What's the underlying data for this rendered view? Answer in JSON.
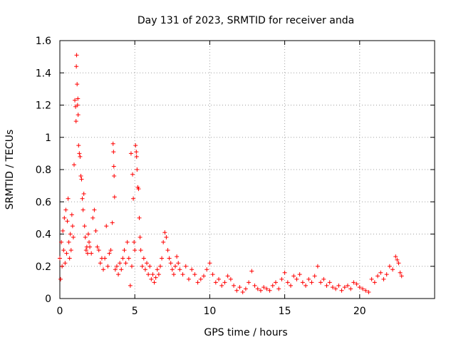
{
  "chart_data": {
    "type": "scatter",
    "title": "Day 131 of 2023, SRMTID for receiver anda",
    "xlabel": "GPS time / hours",
    "ylabel": "SRMTID / TECUs",
    "xlim": [
      0,
      25
    ],
    "ylim": [
      0,
      1.6
    ],
    "xticks": [
      0,
      5,
      10,
      15,
      20
    ],
    "xtick_labels": [
      "0",
      "5",
      "10",
      "15",
      "20"
    ],
    "yticks": [
      0,
      0.2,
      0.4,
      0.6,
      0.8,
      1.0,
      1.2,
      1.4,
      1.6
    ],
    "ytick_labels": [
      "0",
      "0.2",
      "0.4",
      "0.6",
      "0.8",
      "1",
      "1.2",
      "1.4",
      "1.6"
    ],
    "grid": true,
    "marker": "+",
    "series": [
      {
        "name": "SRMTID",
        "color": "#ff0000",
        "points": [
          [
            0.0,
            0.25
          ],
          [
            0.05,
            0.12
          ],
          [
            0.1,
            0.35
          ],
          [
            0.15,
            0.2
          ],
          [
            0.2,
            0.42
          ],
          [
            0.25,
            0.3
          ],
          [
            0.3,
            0.5
          ],
          [
            0.35,
            0.22
          ],
          [
            0.4,
            0.55
          ],
          [
            0.45,
            0.28
          ],
          [
            0.5,
            0.48
          ],
          [
            0.55,
            0.62
          ],
          [
            0.6,
            0.35
          ],
          [
            0.65,
            0.25
          ],
          [
            0.7,
            0.4
          ],
          [
            0.75,
            0.3
          ],
          [
            0.8,
            0.52
          ],
          [
            0.85,
            0.45
          ],
          [
            0.9,
            0.38
          ],
          [
            0.95,
            0.83
          ],
          [
            1.0,
            1.23
          ],
          [
            1.05,
            1.19
          ],
          [
            1.08,
            1.1
          ],
          [
            1.1,
            1.44
          ],
          [
            1.12,
            1.51
          ],
          [
            1.15,
            1.33
          ],
          [
            1.18,
            1.2
          ],
          [
            1.2,
            1.24
          ],
          [
            1.22,
            1.14
          ],
          [
            1.25,
            0.95
          ],
          [
            1.3,
            0.9
          ],
          [
            1.35,
            0.88
          ],
          [
            1.4,
            0.76
          ],
          [
            1.45,
            0.74
          ],
          [
            1.5,
            0.62
          ],
          [
            1.55,
            0.55
          ],
          [
            1.6,
            0.65
          ],
          [
            1.65,
            0.45
          ],
          [
            1.7,
            0.38
          ],
          [
            1.75,
            0.3
          ],
          [
            1.8,
            0.32
          ],
          [
            1.85,
            0.28
          ],
          [
            1.9,
            0.4
          ],
          [
            1.95,
            0.35
          ],
          [
            2.0,
            0.32
          ],
          [
            2.1,
            0.28
          ],
          [
            2.2,
            0.5
          ],
          [
            2.3,
            0.55
          ],
          [
            2.4,
            0.42
          ],
          [
            2.5,
            0.32
          ],
          [
            2.6,
            0.3
          ],
          [
            2.7,
            0.22
          ],
          [
            2.8,
            0.25
          ],
          [
            2.9,
            0.18
          ],
          [
            3.0,
            0.25
          ],
          [
            3.1,
            0.45
          ],
          [
            3.2,
            0.2
          ],
          [
            3.3,
            0.28
          ],
          [
            3.4,
            0.3
          ],
          [
            3.5,
            0.47
          ],
          [
            3.55,
            0.96
          ],
          [
            3.58,
            0.91
          ],
          [
            3.6,
            0.82
          ],
          [
            3.62,
            0.76
          ],
          [
            3.65,
            0.63
          ],
          [
            3.7,
            0.18
          ],
          [
            3.8,
            0.2
          ],
          [
            3.9,
            0.15
          ],
          [
            4.0,
            0.22
          ],
          [
            4.1,
            0.18
          ],
          [
            4.2,
            0.25
          ],
          [
            4.3,
            0.3
          ],
          [
            4.4,
            0.22
          ],
          [
            4.5,
            0.35
          ],
          [
            4.6,
            0.25
          ],
          [
            4.7,
            0.08
          ],
          [
            4.75,
            0.9
          ],
          [
            4.8,
            0.2
          ],
          [
            4.85,
            0.77
          ],
          [
            4.9,
            0.62
          ],
          [
            4.95,
            0.35
          ],
          [
            5.0,
            0.3
          ],
          [
            5.05,
            0.95
          ],
          [
            5.1,
            0.91
          ],
          [
            5.12,
            0.88
          ],
          [
            5.15,
            0.8
          ],
          [
            5.2,
            0.69
          ],
          [
            5.25,
            0.68
          ],
          [
            5.3,
            0.5
          ],
          [
            5.35,
            0.38
          ],
          [
            5.4,
            0.3
          ],
          [
            5.5,
            0.2
          ],
          [
            5.6,
            0.25
          ],
          [
            5.7,
            0.18
          ],
          [
            5.8,
            0.22
          ],
          [
            5.9,
            0.15
          ],
          [
            6.0,
            0.2
          ],
          [
            6.1,
            0.12
          ],
          [
            6.2,
            0.15
          ],
          [
            6.3,
            0.1
          ],
          [
            6.4,
            0.13
          ],
          [
            6.5,
            0.18
          ],
          [
            6.6,
            0.15
          ],
          [
            6.7,
            0.2
          ],
          [
            6.8,
            0.25
          ],
          [
            6.9,
            0.35
          ],
          [
            7.0,
            0.41
          ],
          [
            7.1,
            0.38
          ],
          [
            7.2,
            0.3
          ],
          [
            7.3,
            0.25
          ],
          [
            7.4,
            0.22
          ],
          [
            7.5,
            0.18
          ],
          [
            7.6,
            0.15
          ],
          [
            7.7,
            0.2
          ],
          [
            7.8,
            0.26
          ],
          [
            7.9,
            0.22
          ],
          [
            8.0,
            0.18
          ],
          [
            8.2,
            0.15
          ],
          [
            8.4,
            0.2
          ],
          [
            8.6,
            0.12
          ],
          [
            8.8,
            0.18
          ],
          [
            9.0,
            0.15
          ],
          [
            9.2,
            0.1
          ],
          [
            9.4,
            0.12
          ],
          [
            9.6,
            0.14
          ],
          [
            9.8,
            0.18
          ],
          [
            10.0,
            0.22
          ],
          [
            10.2,
            0.15
          ],
          [
            10.4,
            0.1
          ],
          [
            10.6,
            0.12
          ],
          [
            10.8,
            0.08
          ],
          [
            11.0,
            0.1
          ],
          [
            11.2,
            0.14
          ],
          [
            11.4,
            0.12
          ],
          [
            11.6,
            0.08
          ],
          [
            11.8,
            0.05
          ],
          [
            12.0,
            0.07
          ],
          [
            12.2,
            0.04
          ],
          [
            12.4,
            0.06
          ],
          [
            12.6,
            0.1
          ],
          [
            12.8,
            0.17
          ],
          [
            13.0,
            0.08
          ],
          [
            13.2,
            0.06
          ],
          [
            13.4,
            0.05
          ],
          [
            13.6,
            0.07
          ],
          [
            13.8,
            0.06
          ],
          [
            14.0,
            0.05
          ],
          [
            14.2,
            0.08
          ],
          [
            14.4,
            0.1
          ],
          [
            14.6,
            0.06
          ],
          [
            14.8,
            0.12
          ],
          [
            15.0,
            0.16
          ],
          [
            15.2,
            0.1
          ],
          [
            15.4,
            0.08
          ],
          [
            15.6,
            0.14
          ],
          [
            15.8,
            0.12
          ],
          [
            16.0,
            0.15
          ],
          [
            16.2,
            0.1
          ],
          [
            16.4,
            0.08
          ],
          [
            16.6,
            0.12
          ],
          [
            16.8,
            0.1
          ],
          [
            17.0,
            0.14
          ],
          [
            17.2,
            0.2
          ],
          [
            17.4,
            0.1
          ],
          [
            17.6,
            0.12
          ],
          [
            17.8,
            0.08
          ],
          [
            18.0,
            0.1
          ],
          [
            18.2,
            0.07
          ],
          [
            18.4,
            0.06
          ],
          [
            18.6,
            0.08
          ],
          [
            18.8,
            0.05
          ],
          [
            19.0,
            0.07
          ],
          [
            19.2,
            0.08
          ],
          [
            19.4,
            0.06
          ],
          [
            19.6,
            0.1
          ],
          [
            19.8,
            0.09
          ],
          [
            20.0,
            0.07
          ],
          [
            20.2,
            0.06
          ],
          [
            20.4,
            0.05
          ],
          [
            20.6,
            0.04
          ],
          [
            20.8,
            0.12
          ],
          [
            21.0,
            0.1
          ],
          [
            21.2,
            0.14
          ],
          [
            21.4,
            0.16
          ],
          [
            21.6,
            0.12
          ],
          [
            21.8,
            0.15
          ],
          [
            22.0,
            0.2
          ],
          [
            22.2,
            0.18
          ],
          [
            22.4,
            0.26
          ],
          [
            22.5,
            0.24
          ],
          [
            22.6,
            0.22
          ],
          [
            22.7,
            0.16
          ],
          [
            22.8,
            0.14
          ]
        ]
      }
    ]
  }
}
